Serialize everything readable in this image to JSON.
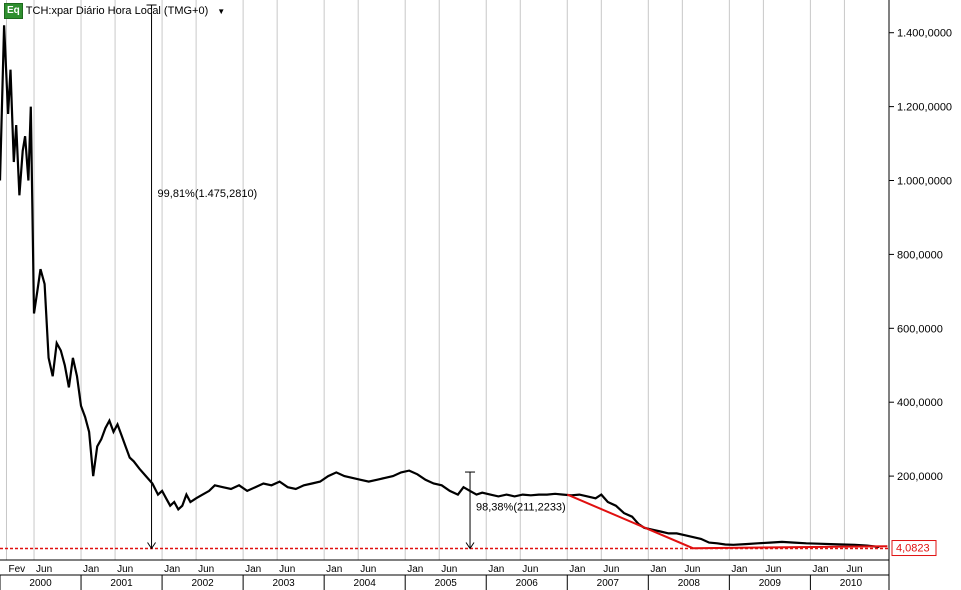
{
  "header": {
    "badge": "Eq",
    "symbol_title": "TCH:xpar Diário Hora Local (TMG+0)",
    "dropdown_icon": "triangle-down-icon"
  },
  "colors": {
    "price": "#000000",
    "trend": "#e01010",
    "level_line": "#e01010",
    "grid": "#c8c8c8",
    "last_price_box": "#e01010"
  },
  "chart_data": {
    "type": "line",
    "title": "",
    "xlabel": "",
    "ylabel": "",
    "ylim": [
      0,
      1460
    ],
    "y_ticks": [
      "1.400,0000",
      "1.200,0000",
      "1.000,0000",
      "800,0000",
      "600,0000",
      "400,0000",
      "200,0000"
    ],
    "y_tick_values": [
      1400,
      1200,
      1000,
      800,
      600,
      400,
      200
    ],
    "x_month_labels": [
      "Fev",
      "Jun",
      "Jan",
      "Jun",
      "Jan",
      "Jun",
      "Jan",
      "Jun",
      "Jan",
      "Jun",
      "Jan",
      "Jun",
      "Jan",
      "Jun",
      "Jan",
      "Jun",
      "Jan",
      "Jun",
      "Jan",
      "Jun",
      "Jan",
      "Jun"
    ],
    "x_month_dates": [
      2000.08,
      2000.42,
      2001.0,
      2001.42,
      2002.0,
      2002.42,
      2003.0,
      2003.42,
      2004.0,
      2004.42,
      2005.0,
      2005.42,
      2006.0,
      2006.42,
      2007.0,
      2007.42,
      2008.0,
      2008.42,
      2009.0,
      2009.42,
      2010.0,
      2010.42
    ],
    "x_year_labels": [
      "2000",
      "2001",
      "2002",
      "2003",
      "2004",
      "2005",
      "2006",
      "2007",
      "2008",
      "2009",
      "2010"
    ],
    "x_year_dates": [
      2000.5,
      2001.5,
      2002.5,
      2003.5,
      2004.5,
      2005.5,
      2006.5,
      2007.5,
      2008.5,
      2009.5,
      2010.5
    ],
    "xlim": [
      2000.0,
      2010.97
    ],
    "series": [
      {
        "x": [
          2000.0,
          2000.05,
          2000.1,
          2000.13,
          2000.17,
          2000.2,
          2000.24,
          2000.28,
          2000.31,
          2000.35,
          2000.38,
          2000.42,
          2000.46,
          2000.5,
          2000.55,
          2000.6,
          2000.65,
          2000.7,
          2000.75,
          2000.8,
          2000.85,
          2000.9,
          2000.95,
          2001.0,
          2001.05,
          2001.1,
          2001.15,
          2001.2,
          2001.25,
          2001.3,
          2001.35,
          2001.4,
          2001.45,
          2001.5,
          2001.55,
          2001.6,
          2001.65,
          2001.72,
          2001.8,
          2001.88,
          2001.95,
          2002.0,
          2002.05,
          2002.1,
          2002.15,
          2002.2,
          2002.25,
          2002.3,
          2002.35,
          2002.42,
          2002.5,
          2002.58,
          2002.65,
          2002.75,
          2002.85,
          2002.95,
          2003.05,
          2003.15,
          2003.25,
          2003.35,
          2003.45,
          2003.55,
          2003.65,
          2003.75,
          2003.85,
          2003.95,
          2004.05,
          2004.15,
          2004.25,
          2004.35,
          2004.45,
          2004.55,
          2004.65,
          2004.75,
          2004.85,
          2004.95,
          2005.05,
          2005.15,
          2005.25,
          2005.35,
          2005.45,
          2005.55,
          2005.65,
          2005.72,
          2005.8,
          2005.88,
          2005.95,
          2006.05,
          2006.15,
          2006.25,
          2006.35,
          2006.45,
          2006.55,
          2006.65,
          2006.75,
          2006.85,
          2006.95,
          2007.05,
          2007.15,
          2007.25,
          2007.35,
          2007.42,
          2007.5,
          2007.6,
          2007.7,
          2007.8,
          2007.88,
          2007.95,
          2008.05,
          2008.15,
          2008.25,
          2008.35,
          2008.45,
          2008.55,
          2008.65,
          2008.75,
          2008.85,
          2008.95,
          2009.05,
          2009.2,
          2009.35,
          2009.5,
          2009.65,
          2009.8,
          2009.95,
          2010.1,
          2010.25,
          2010.4,
          2010.55,
          2010.7,
          2010.85
        ],
        "values": [
          1000,
          1420,
          1180,
          1300,
          1050,
          1150,
          960,
          1080,
          1120,
          1000,
          1200,
          640,
          700,
          760,
          720,
          520,
          470,
          560,
          540,
          500,
          440,
          520,
          470,
          390,
          360,
          320,
          200,
          280,
          300,
          330,
          350,
          320,
          340,
          310,
          280,
          250,
          240,
          220,
          200,
          180,
          150,
          160,
          140,
          120,
          130,
          110,
          120,
          150,
          130,
          140,
          150,
          160,
          175,
          170,
          165,
          175,
          160,
          170,
          180,
          175,
          185,
          170,
          165,
          175,
          180,
          185,
          200,
          210,
          200,
          195,
          190,
          185,
          190,
          195,
          200,
          210,
          215,
          205,
          190,
          180,
          175,
          160,
          150,
          170,
          160,
          150,
          155,
          150,
          145,
          150,
          145,
          150,
          148,
          150,
          150,
          152,
          150,
          148,
          150,
          145,
          140,
          150,
          130,
          120,
          100,
          90,
          70,
          60,
          55,
          50,
          45,
          45,
          40,
          35,
          30,
          20,
          18,
          15,
          14,
          16,
          18,
          20,
          22,
          20,
          18,
          17,
          16,
          15,
          14,
          12,
          8
        ]
      }
    ],
    "annotations": [
      {
        "label": "99,81%(1.475,2810)",
        "x": 2001.87,
        "y_from": 1475,
        "y_to": 4
      },
      {
        "label": "98,38%(211,2233)",
        "x": 2005.8,
        "y_from": 211,
        "y_to": 4
      }
    ],
    "trend_line": {
      "x": [
        2007.0,
        2008.55,
        2010.95
      ],
      "y": [
        150,
        5,
        10
      ]
    },
    "level_line_value": 4,
    "last_price": "4,0823"
  }
}
